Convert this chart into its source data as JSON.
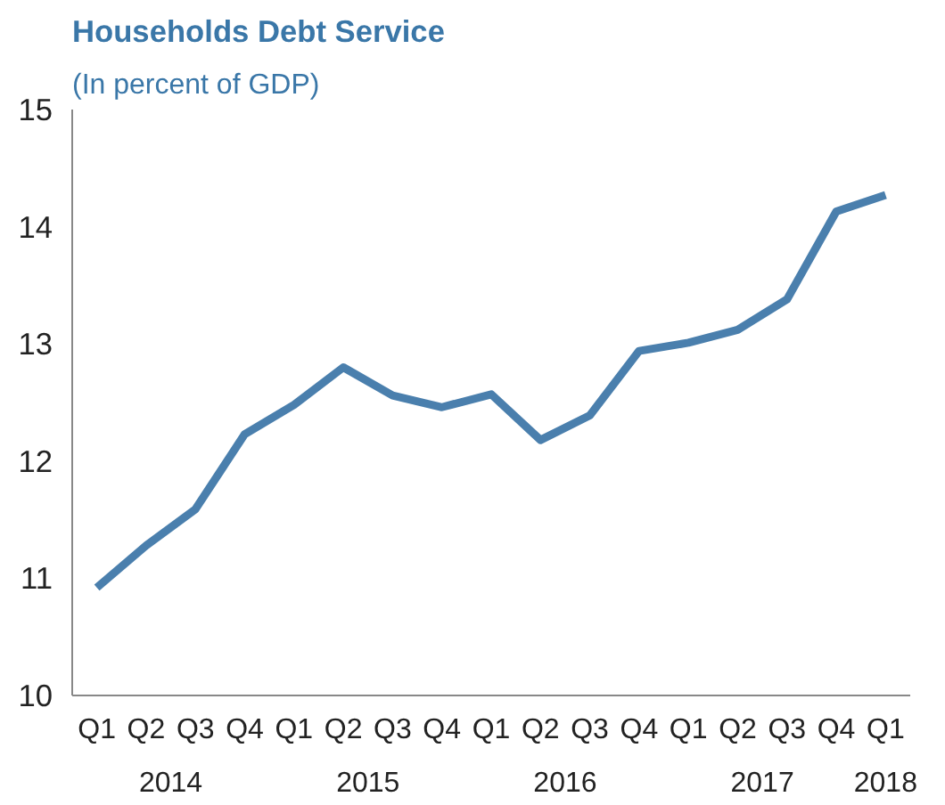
{
  "chart_data": {
    "type": "line",
    "title": "Households Debt Service",
    "subtitle": "(In percent of GDP)",
    "categories": [
      "Q1",
      "Q2",
      "Q3",
      "Q4",
      "Q1",
      "Q2",
      "Q3",
      "Q4",
      "Q1",
      "Q2",
      "Q3",
      "Q4",
      "Q1",
      "Q2",
      "Q3",
      "Q4",
      "Q1"
    ],
    "values": [
      10.92,
      11.28,
      11.59,
      12.23,
      12.48,
      12.8,
      12.56,
      12.46,
      12.57,
      12.18,
      12.39,
      12.94,
      13.01,
      13.12,
      13.38,
      14.13,
      14.27
    ],
    "color": "#4a7fad",
    "annotations": [
      "2014",
      "2015",
      "2016",
      "2017",
      "2018"
    ],
    "ylim": [
      10,
      15
    ],
    "yticks": [
      10,
      11,
      12,
      13,
      14,
      15
    ],
    "grid": false,
    "marker": "none",
    "line_style": "solid"
  }
}
